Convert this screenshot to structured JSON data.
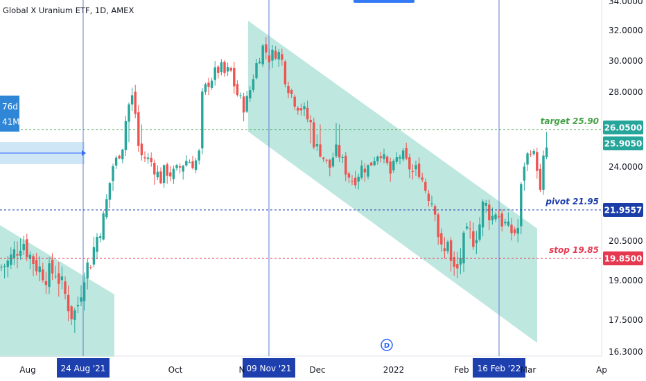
{
  "header": {
    "title": "Global X Uranium ETF, 1D, AMEX"
  },
  "colors": {
    "up": "#26a69a",
    "down": "#ef5350",
    "channel": "#b2e3d9",
    "target": "#43a047",
    "pivot": "#1a3da8",
    "stop": "#e53950",
    "marker": "#1e40af",
    "range": "#cfe6f7"
  },
  "chart_data": {
    "type": "candlestick",
    "ylim": [
      16.3,
      34.0
    ],
    "y_ticks": [
      "34.0000",
      "32.0000",
      "30.0000",
      "28.0000",
      "24.0000",
      "20.5000",
      "19.0000",
      "17.5000",
      "16.3000"
    ],
    "x_ticks": [
      "Aug",
      "Oct",
      "N",
      "Dec",
      "2022",
      "Feb",
      "Mar",
      "Ap"
    ],
    "levels": [
      {
        "name": "target",
        "label": "target 25.90",
        "value": 25.9
      },
      {
        "name": "pivot",
        "label": "pivot 21.95",
        "value": 21.95
      },
      {
        "name": "stop",
        "label": "stop 19.85",
        "value": 19.85
      }
    ],
    "price_tags": [
      {
        "text": "26.0500",
        "value": 26.05,
        "color": "#26a69a"
      },
      {
        "text": "25.9050",
        "value": 25.905,
        "color": "#26a69a"
      },
      {
        "text": "21.9557",
        "value": 21.9557,
        "color": "#1a3da8"
      },
      {
        "text": "19.8500",
        "value": 19.85,
        "color": "#e53950"
      }
    ],
    "date_markers": [
      "24 Aug '21",
      "09 Nov '21",
      "16 Feb '22"
    ],
    "left_labels": [
      "76d",
      "41M"
    ],
    "dividend_marker": "D"
  }
}
